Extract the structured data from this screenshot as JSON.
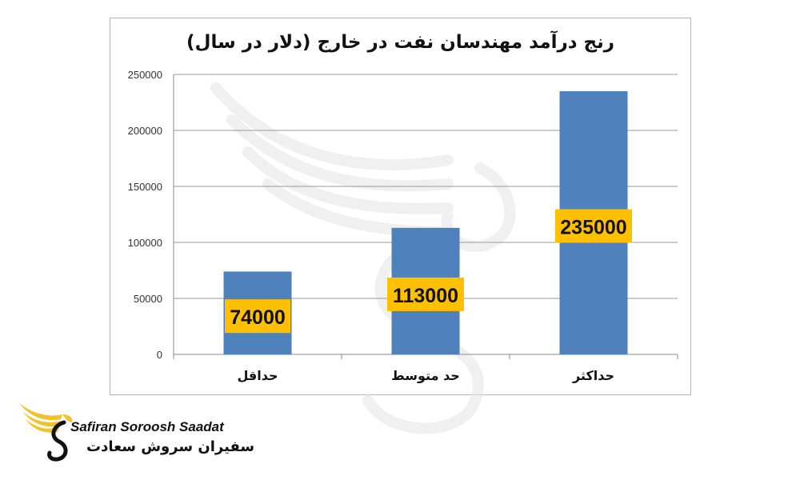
{
  "chart_data": {
    "type": "bar",
    "title": "رنج درآمد مهندسان نفت در خارج (دلار در سال)",
    "categories": [
      "حداقل",
      "حد متوسط",
      "حداکثر"
    ],
    "values": [
      74000,
      113000,
      235000
    ],
    "data_labels": [
      "74000",
      "113000",
      "235000"
    ],
    "ylim": [
      0,
      250000
    ],
    "yticks": [
      "0",
      "50000",
      "100000",
      "150000",
      "200000",
      "250000"
    ],
    "grid": true,
    "legend": "none",
    "bar_color": "#4f81bd",
    "label_bg_color": "#ffc000"
  },
  "logo": {
    "latin": "Safiran Soroosh Saadat",
    "persian": "سفیران سروش سعادت",
    "color": "#f2c12e"
  }
}
